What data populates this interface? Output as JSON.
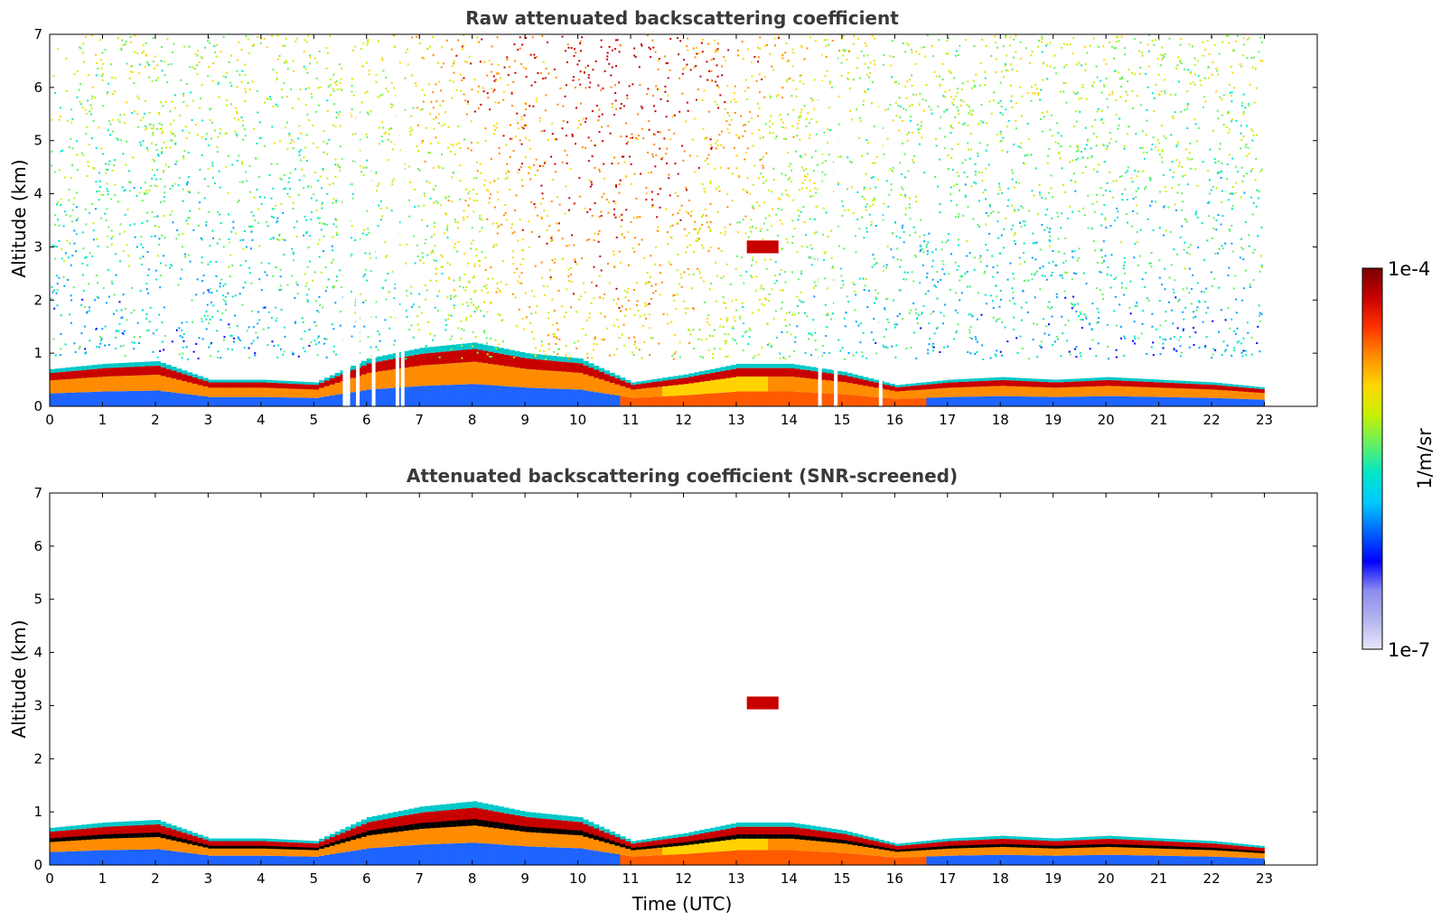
{
  "chart_data": [
    {
      "type": "heatmap",
      "title": "Raw attenuated backscattering coefficient",
      "xlabel": "",
      "ylabel": "Altitude (km)",
      "xlim": [
        0,
        24
      ],
      "ylim": [
        0,
        7
      ],
      "x_ticks": [
        "0",
        "1",
        "2",
        "3",
        "4",
        "5",
        "6",
        "7",
        "8",
        "9",
        "10",
        "11",
        "12",
        "13",
        "14",
        "15",
        "16",
        "17",
        "18",
        "19",
        "20",
        "21",
        "22",
        "23"
      ],
      "y_ticks": [
        "0",
        "1",
        "2",
        "3",
        "4",
        "5",
        "6",
        "7"
      ],
      "data_extent_x": [
        0,
        22.95
      ],
      "features": {
        "boundary_layer_top_km": [
          [
            0,
            0.7
          ],
          [
            1,
            0.8
          ],
          [
            2,
            0.85
          ],
          [
            3,
            0.5
          ],
          [
            4,
            0.5
          ],
          [
            5,
            0.45
          ],
          [
            6,
            0.9
          ],
          [
            7,
            1.1
          ],
          [
            8,
            1.2
          ],
          [
            9,
            1.0
          ],
          [
            10,
            0.9
          ],
          [
            11,
            0.45
          ],
          [
            12,
            0.6
          ],
          [
            13,
            0.8
          ],
          [
            14,
            0.8
          ],
          [
            15,
            0.65
          ],
          [
            16,
            0.4
          ],
          [
            17,
            0.5
          ],
          [
            18,
            0.55
          ],
          [
            19,
            0.5
          ],
          [
            20,
            0.55
          ],
          [
            21,
            0.5
          ],
          [
            22,
            0.45
          ],
          [
            23,
            0.35
          ]
        ],
        "elevated_layer": {
          "x_start": 13.2,
          "x_end": 13.8,
          "altitude_km": 3.0
        },
        "data_gaps": [
          5.55,
          5.62,
          5.8,
          6.1,
          6.55,
          6.65,
          14.55,
          14.85,
          15.7
        ]
      }
    },
    {
      "type": "heatmap",
      "title": "Attenuated backscattering coefficient (SNR-screened)",
      "xlabel": "Time (UTC)",
      "ylabel": "Altitude (km)",
      "xlim": [
        0,
        24
      ],
      "ylim": [
        0,
        7
      ],
      "x_ticks": [
        "0",
        "1",
        "2",
        "3",
        "4",
        "5",
        "6",
        "7",
        "8",
        "9",
        "10",
        "11",
        "12",
        "13",
        "14",
        "15",
        "16",
        "17",
        "18",
        "19",
        "20",
        "21",
        "22",
        "23"
      ],
      "y_ticks": [
        "0",
        "1",
        "2",
        "3",
        "4",
        "5",
        "6",
        "7"
      ],
      "data_extent_x": [
        0,
        22.95
      ],
      "features": {
        "elevated_layer": {
          "x_start": 13.2,
          "x_end": 13.8,
          "altitude_km": 3.05
        }
      }
    }
  ],
  "colorbar": {
    "top_label": "1e-4",
    "bottom_label": "1e-7",
    "unit_label": "1/m/sr",
    "scale": "log",
    "range": [
      1e-07,
      0.0001
    ],
    "colors": [
      "#e6e6fa",
      "#b4b4f0",
      "#8c8cf0",
      "#0000ff",
      "#0064ff",
      "#00c8ff",
      "#00e6c8",
      "#64f064",
      "#c8f000",
      "#ffd700",
      "#ff8c00",
      "#ff3200",
      "#c80000",
      "#780000"
    ]
  }
}
